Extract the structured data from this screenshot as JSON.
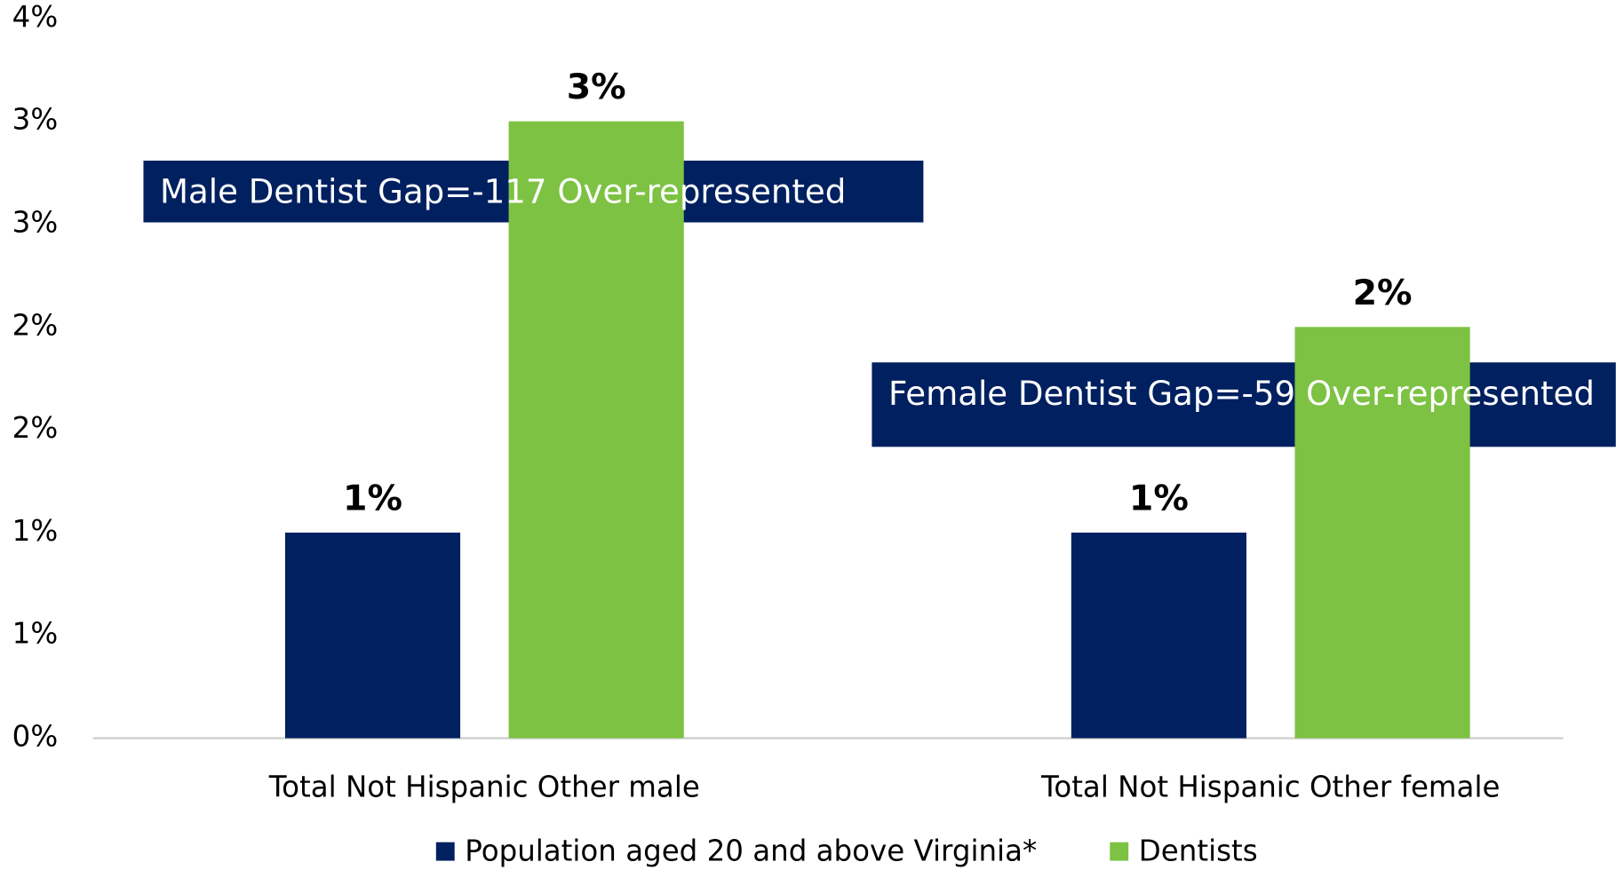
{
  "chart_data": {
    "type": "bar",
    "categories": [
      "Total Not Hispanic Other male",
      "Total Not Hispanic Other female"
    ],
    "series": [
      {
        "name": "Population aged 20 and above Virginia*",
        "color": "#002060",
        "values": [
          1,
          1
        ],
        "value_labels": [
          "1%",
          "1%"
        ]
      },
      {
        "name": "Dentists",
        "color": "#7dc242",
        "values": [
          3,
          2
        ],
        "value_labels": [
          "3%",
          "2%"
        ]
      }
    ],
    "ylim": [
      0,
      3.5
    ],
    "yticks": [
      {
        "value": 0,
        "label": "0%"
      },
      {
        "value": 0.5,
        "label": "1%"
      },
      {
        "value": 1,
        "label": "1%"
      },
      {
        "value": 1.5,
        "label": "2%"
      },
      {
        "value": 2,
        "label": "2%"
      },
      {
        "value": 2.5,
        "label": "3%"
      },
      {
        "value": 3,
        "label": "3%"
      },
      {
        "value": 3.5,
        "label": "4%"
      }
    ],
    "annotations": [
      "Male Dentist Gap=-117 Over-represented",
      "Female Dentist Gap=-59 Over-represented"
    ],
    "legend": "bottom"
  }
}
